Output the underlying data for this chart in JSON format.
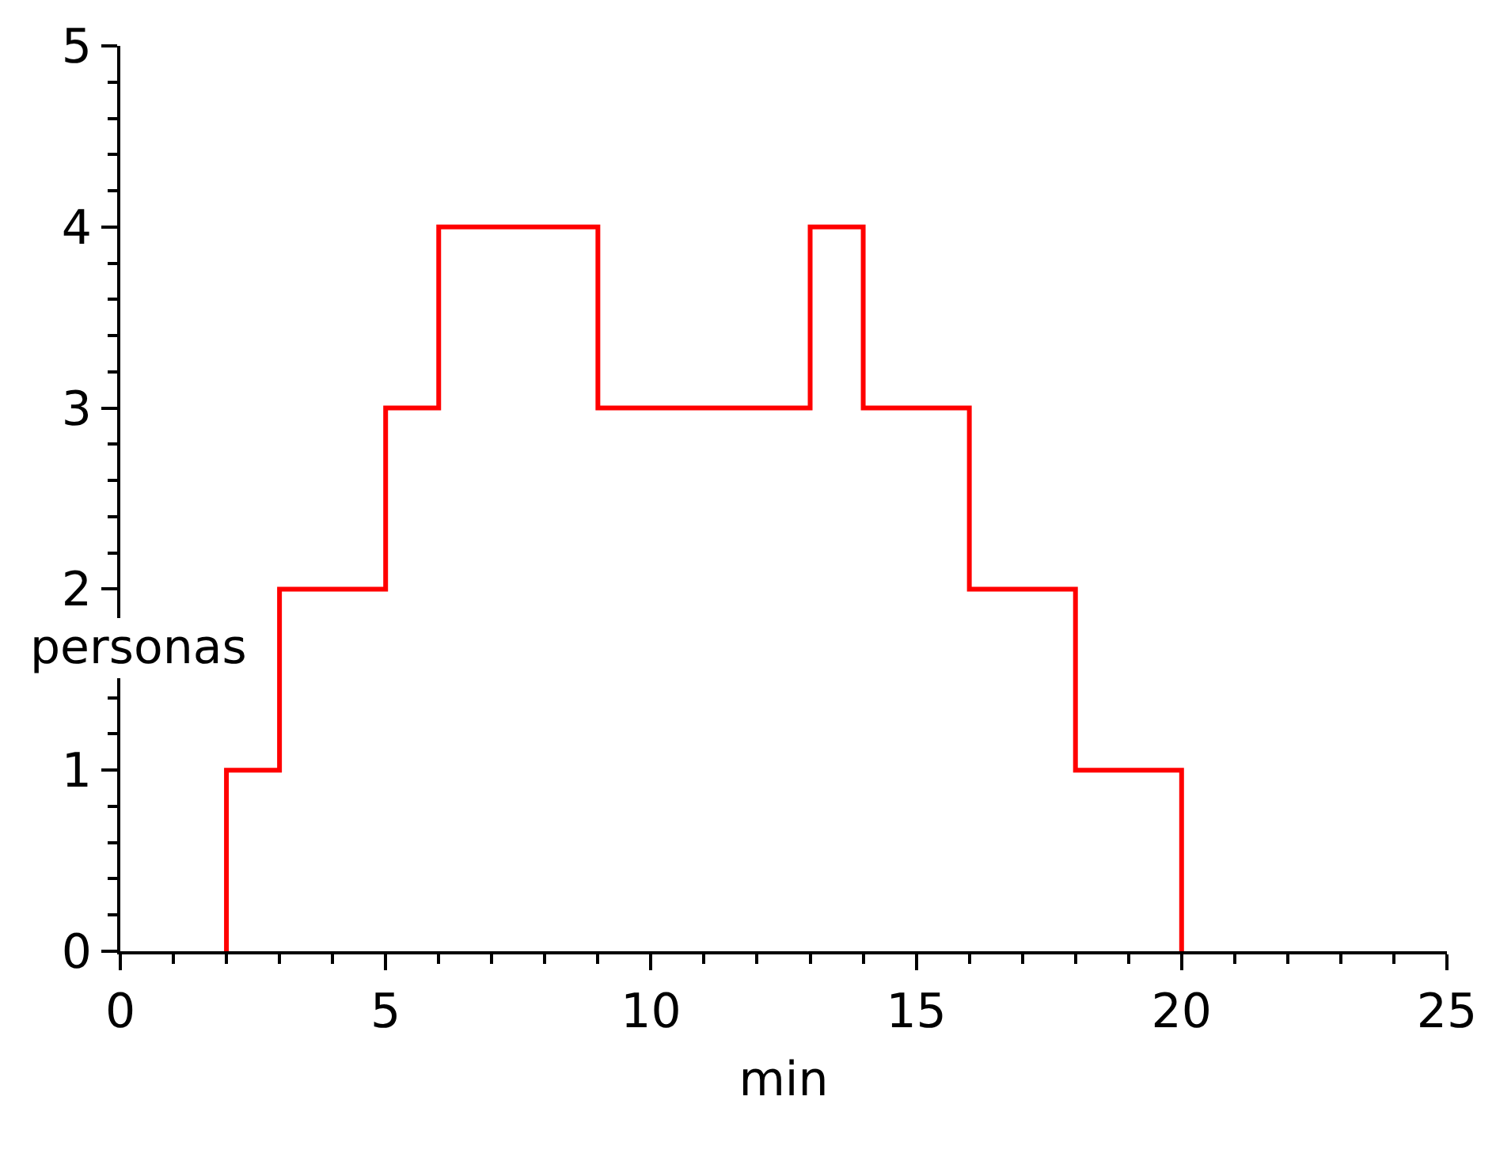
{
  "chart_data": {
    "type": "step",
    "xlabel": "min",
    "ylabel": "personas",
    "x": [
      2,
      2,
      3,
      5,
      6,
      9,
      13,
      14,
      16,
      18,
      20
    ],
    "series": [
      {
        "color": "#ff0000",
        "values": [
          0,
          1,
          2,
          3,
          4,
          3,
          4,
          3,
          2,
          1,
          0
        ]
      }
    ],
    "xlim": [
      0,
      25
    ],
    "xticks": [
      0,
      5,
      10,
      15,
      20,
      25
    ],
    "ylim": [
      0,
      5
    ],
    "yticks": [
      0,
      1,
      2,
      3,
      4,
      5
    ],
    "legend": false,
    "marker": "none",
    "line_style": "solid"
  }
}
